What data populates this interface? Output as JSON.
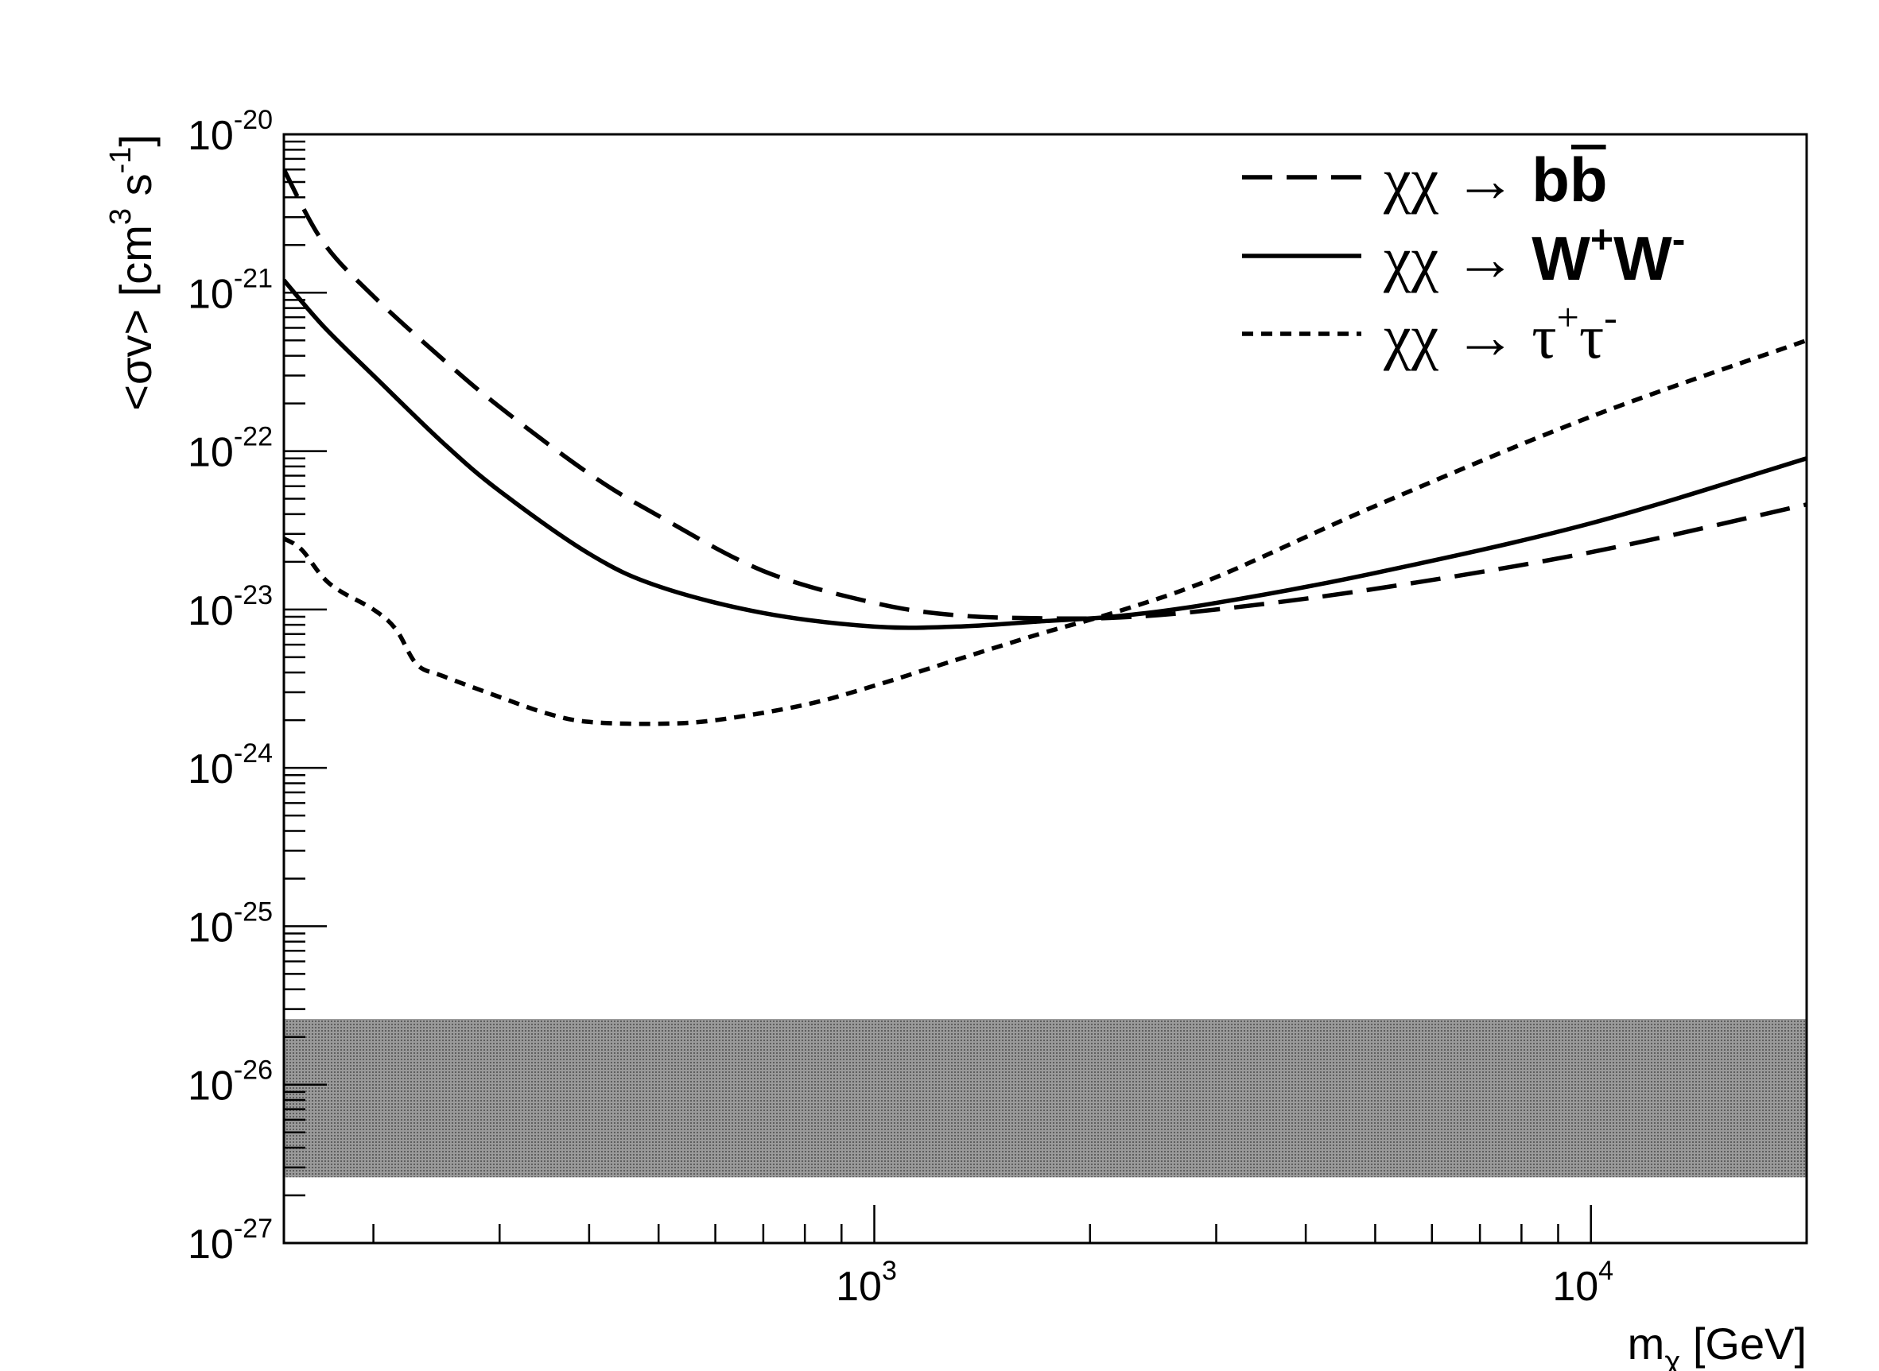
{
  "chart_data": {
    "type": "line",
    "title": "",
    "xlabel": "m_χ [GeV]",
    "ylabel": "<σv> [cm^3 s^-1]",
    "x_scale": "log",
    "y_scale": "log",
    "xlim": [
      150,
      20000
    ],
    "ylim": [
      1e-27,
      1e-20
    ],
    "grid": false,
    "legend_position": "top-right",
    "x_tick_labels": [
      {
        "value": 1000,
        "base": "10",
        "exp": "3"
      },
      {
        "value": 10000,
        "base": "10",
        "exp": "4"
      }
    ],
    "y_tick_labels": [
      {
        "value": 1e-20,
        "base": "10",
        "exp": "-20"
      },
      {
        "value": 1e-21,
        "base": "10",
        "exp": "-21"
      },
      {
        "value": 1e-22,
        "base": "10",
        "exp": "-22"
      },
      {
        "value": 1e-23,
        "base": "10",
        "exp": "-23"
      },
      {
        "value": 1e-24,
        "base": "10",
        "exp": "-24"
      },
      {
        "value": 1e-25,
        "base": "10",
        "exp": "-25"
      },
      {
        "value": 1e-26,
        "base": "10",
        "exp": "-26"
      },
      {
        "value": 1e-27,
        "base": "10",
        "exp": "-27"
      }
    ],
    "series": [
      {
        "name": "χχ → bb̄",
        "style": "long-dash",
        "x": [
          150,
          170,
          200,
          250,
          300,
          400,
          500,
          700,
          1000,
          1300,
          1700,
          2200,
          3000,
          5000,
          10000,
          20000
        ],
        "y": [
          6e-21,
          2.1e-21,
          9.5e-22,
          3.8e-22,
          1.9e-22,
          7.2e-23,
          3.9e-23,
          1.75e-23,
          1.1e-23,
          9.2e-24,
          8.8e-24,
          8.9e-24,
          1e-23,
          1.35e-23,
          2.3e-23,
          4.6e-23
        ]
      },
      {
        "name": "χχ → W+W-",
        "style": "solid",
        "x": [
          150,
          170,
          200,
          250,
          300,
          400,
          500,
          700,
          1000,
          1300,
          1700,
          2200,
          3000,
          5000,
          10000,
          20000
        ],
        "y": [
          1.2e-21,
          6.2e-22,
          3e-22,
          1.13e-22,
          5.6e-23,
          2.25e-23,
          1.4e-23,
          9.5e-24,
          7.8e-24,
          7.8e-24,
          8.4e-24,
          9.1e-24,
          1.1e-23,
          1.7e-23,
          3.5e-23,
          9e-23
        ]
      },
      {
        "name": "χχ → τ+τ-",
        "style": "short-dash",
        "x": [
          150,
          155,
          160,
          170,
          180,
          200,
          215,
          230,
          250,
          300,
          350,
          400,
          500,
          600,
          800,
          1000,
          1300,
          1700,
          2200,
          3000,
          5000,
          10000,
          20000
        ],
        "y": [
          2.8e-23,
          2.6e-23,
          2.3e-23,
          1.6e-23,
          1.3e-23,
          1e-23,
          7.5e-24,
          4.5e-24,
          3.8e-24,
          2.8e-24,
          2.2e-24,
          1.95e-24,
          1.9e-24,
          2e-24,
          2.5e-24,
          3.3e-24,
          4.8e-24,
          7e-24,
          9.8e-24,
          1.6e-23,
          4.5e-23,
          1.65e-22,
          5e-22
        ]
      }
    ],
    "band": {
      "ylow": 2.6e-27,
      "yhigh": 2.6e-26,
      "color": "#8c8c8c"
    },
    "legend": [
      {
        "prefix": "χχ → ",
        "particle": "b",
        "particle2": "b",
        "bar_on_second": true,
        "style": "long-dash"
      },
      {
        "prefix": "χχ → ",
        "particle": "W",
        "sup1": "+",
        "particle2": "W",
        "sup2": "-",
        "style": "solid"
      },
      {
        "prefix": "χχ → ",
        "particle": "τ",
        "sup1": "+",
        "particle2": "τ",
        "sup2": "-",
        "style": "short-dash"
      }
    ],
    "axis_label_parts": {
      "x": {
        "main": "m",
        "sub": "χ",
        "unit": " [GeV]"
      },
      "y": {
        "open": "<σv> [cm",
        "sup1": "3",
        "mid": " s",
        "sup2": "-1",
        "close": "]"
      }
    }
  }
}
